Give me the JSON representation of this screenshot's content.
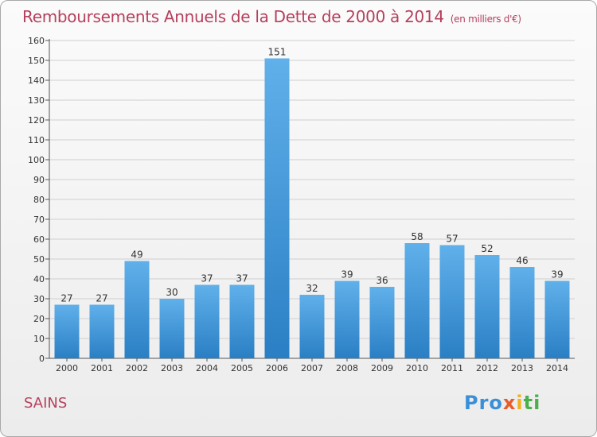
{
  "header": {
    "title": "Remboursements Annuels de la Dette de 2000 à 2014",
    "unit_note": "(en milliers d'€)"
  },
  "footer": {
    "commune": "SAINS",
    "brand": [
      "Pro",
      "x",
      "i",
      "ti"
    ]
  },
  "colors": {
    "title": "#b5405e",
    "bar_top": "#60b0ea",
    "bar_bottom": "#2a7fc4",
    "grid": "#cfcfcf"
  },
  "chart_data": {
    "type": "bar",
    "title": "Remboursements Annuels de la Dette de 2000 à 2014",
    "subtitle": "(en milliers d'€)",
    "xlabel": "",
    "ylabel": "",
    "categories": [
      "2000",
      "2001",
      "2002",
      "2003",
      "2004",
      "2005",
      "2006",
      "2007",
      "2008",
      "2009",
      "2010",
      "2011",
      "2012",
      "2013",
      "2014"
    ],
    "values": [
      27,
      27,
      49,
      30,
      37,
      37,
      151,
      32,
      39,
      36,
      58,
      57,
      52,
      46,
      39
    ],
    "ylim": [
      0,
      160
    ],
    "ytick_step": 10,
    "grid": true,
    "data_labels": true
  }
}
